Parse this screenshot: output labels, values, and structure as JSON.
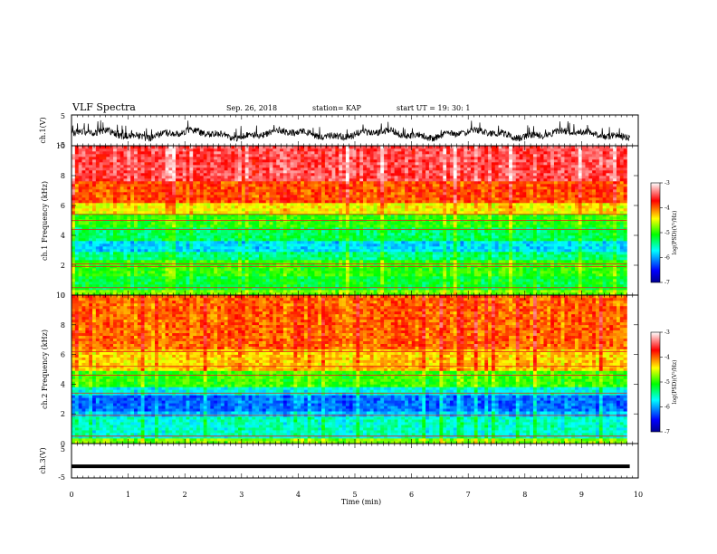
{
  "header": {
    "title": "VLF Spectra",
    "date": "Sep. 26, 2018",
    "station": "station= KAP",
    "start": "start  UT =   19: 30: 1"
  },
  "chart_data": [
    {
      "type": "line",
      "name": "waveform-ch1",
      "ylabel": "ch.1(V)",
      "ylim": [
        -5,
        5
      ],
      "yticks": [
        "5",
        "-5"
      ],
      "xlim": [
        0,
        10
      ],
      "series_style": "noisy waveform, envelope roughly -3 V to +0.5 V"
    },
    {
      "type": "heatmap",
      "name": "spectrogram-ch1",
      "ylabel": "ch.1 Frequency (kHz)",
      "ylim": [
        0,
        10
      ],
      "yticks": [
        "0",
        "2",
        "4",
        "6",
        "8",
        "10"
      ],
      "xlim": [
        0,
        9.8
      ],
      "colorbar": {
        "label": "log(PSD)(V²/Hz)",
        "range": [
          -7,
          -3
        ],
        "ticks": [
          "-3",
          "-4",
          "-5",
          "-6",
          "-7"
        ],
        "colors": [
          "#000090",
          "#0000ff",
          "#00ffff",
          "#00ff00",
          "#ffff00",
          "#ff0000",
          "#ffffff"
        ]
      },
      "bands": [
        {
          "f0": 0,
          "f1": 0.3,
          "level": -4.8
        },
        {
          "f0": 0.3,
          "f1": 1.2,
          "level": -5.2
        },
        {
          "f0": 1.2,
          "f1": 2.3,
          "level": -5.0
        },
        {
          "f0": 2.3,
          "f1": 3.0,
          "level": -5.4
        },
        {
          "f0": 3.0,
          "f1": 3.6,
          "level": -5.8
        },
        {
          "f0": 3.6,
          "f1": 4.6,
          "level": -5.3
        },
        {
          "f0": 4.6,
          "f1": 5.4,
          "level": -5.0
        },
        {
          "f0": 5.4,
          "f1": 6.2,
          "level": -4.4
        },
        {
          "f0": 6.2,
          "f1": 7.6,
          "level": -3.9
        },
        {
          "f0": 7.6,
          "f1": 10.0,
          "level": -3.5
        }
      ],
      "lines_khz": [
        0.5,
        1.9,
        2.1,
        4.4,
        5.0,
        5.4
      ]
    },
    {
      "type": "heatmap",
      "name": "spectrogram-ch2",
      "ylabel": "ch.2 Frequency (kHz)",
      "ylim": [
        0,
        10
      ],
      "yticks": [
        "0",
        "2",
        "4",
        "6",
        "8",
        "10"
      ],
      "xlim": [
        0,
        9.8
      ],
      "colorbar": {
        "label": "log(PSD)(V²/Hz)",
        "range": [
          -7,
          -3
        ],
        "ticks": [
          "-3",
          "-4",
          "-5",
          "-6",
          "-7"
        ],
        "colors": [
          "#000090",
          "#0000ff",
          "#00ffff",
          "#00ff00",
          "#ffff00",
          "#ff0000",
          "#ffffff"
        ]
      },
      "bands": [
        {
          "f0": 0,
          "f1": 0.4,
          "level": -4.8
        },
        {
          "f0": 0.4,
          "f1": 1.8,
          "level": -5.6
        },
        {
          "f0": 1.8,
          "f1": 2.2,
          "level": -5.9
        },
        {
          "f0": 2.2,
          "f1": 3.2,
          "level": -6.2
        },
        {
          "f0": 3.2,
          "f1": 3.8,
          "level": -5.7
        },
        {
          "f0": 3.8,
          "f1": 5.0,
          "level": -5.0
        },
        {
          "f0": 5.0,
          "f1": 6.4,
          "level": -4.3
        },
        {
          "f0": 6.4,
          "f1": 10.0,
          "level": -4.0
        }
      ],
      "lines_khz": [
        0.5,
        1.9,
        3.4,
        4.6,
        5.2,
        6.2
      ]
    },
    {
      "type": "line",
      "name": "waveform-ch3",
      "ylabel": "ch.3(V)",
      "ylim": [
        -5,
        5
      ],
      "yticks": [
        "5",
        "-5"
      ],
      "xlim": [
        0,
        10
      ],
      "series_style": "near-constant thick line around -1 V"
    }
  ],
  "xaxis": {
    "label": "Time (min)",
    "ticks": [
      "0",
      "1",
      "2",
      "3",
      "4",
      "5",
      "6",
      "7",
      "8",
      "9",
      "10"
    ],
    "range": [
      0,
      10
    ]
  }
}
